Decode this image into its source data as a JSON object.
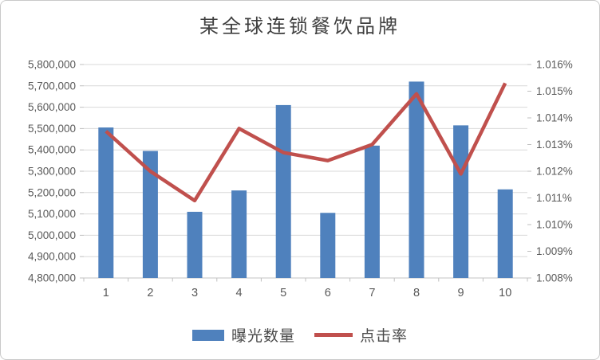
{
  "window": {
    "background": "#ffffff",
    "border_color": "#c9c9c9"
  },
  "chart_data": {
    "type": "combo-bar-line",
    "title": "某全球连锁餐饮品牌",
    "categories": [
      "1",
      "2",
      "3",
      "4",
      "5",
      "6",
      "7",
      "8",
      "9",
      "10"
    ],
    "series": [
      {
        "name": "曝光数量",
        "type": "bar",
        "axis": "left",
        "color": "#4F81BD",
        "values": [
          5505000,
          5395000,
          5110000,
          5210000,
          5610000,
          5105000,
          5420000,
          5720000,
          5515000,
          5215000
        ]
      },
      {
        "name": "点击率",
        "type": "line",
        "axis": "right",
        "color": "#C0504D",
        "values": [
          1.0135,
          1.012,
          1.0109,
          1.0136,
          1.0127,
          1.0124,
          1.013,
          1.0149,
          1.0119,
          1.0153
        ]
      }
    ],
    "left_axis": {
      "min": 4800000,
      "max": 5800000,
      "step": 100000,
      "tick_labels": [
        "5,800,000",
        "5,700,000",
        "5,600,000",
        "5,500,000",
        "5,400,000",
        "5,300,000",
        "5,200,000",
        "5,100,000",
        "5,000,000",
        "4,900,000",
        "4,800,000"
      ]
    },
    "right_axis": {
      "min": 1.008,
      "max": 1.016,
      "step": 0.001,
      "tick_labels": [
        "1.016%",
        "1.015%",
        "1.014%",
        "1.013%",
        "1.012%",
        "1.011%",
        "1.010%",
        "1.009%",
        "1.008%"
      ]
    },
    "grid": true,
    "legend_position": "bottom",
    "grid_color": "#d9d9d9",
    "axis_line_color": "#c3c3c3",
    "tick_color": "#bfbfbf",
    "label_color": "#595959"
  },
  "legend": {
    "items": [
      {
        "label": "曝光数量",
        "swatch": "bar",
        "color": "#4F81BD"
      },
      {
        "label": "点击率",
        "swatch": "line",
        "color": "#C0504D"
      }
    ]
  }
}
